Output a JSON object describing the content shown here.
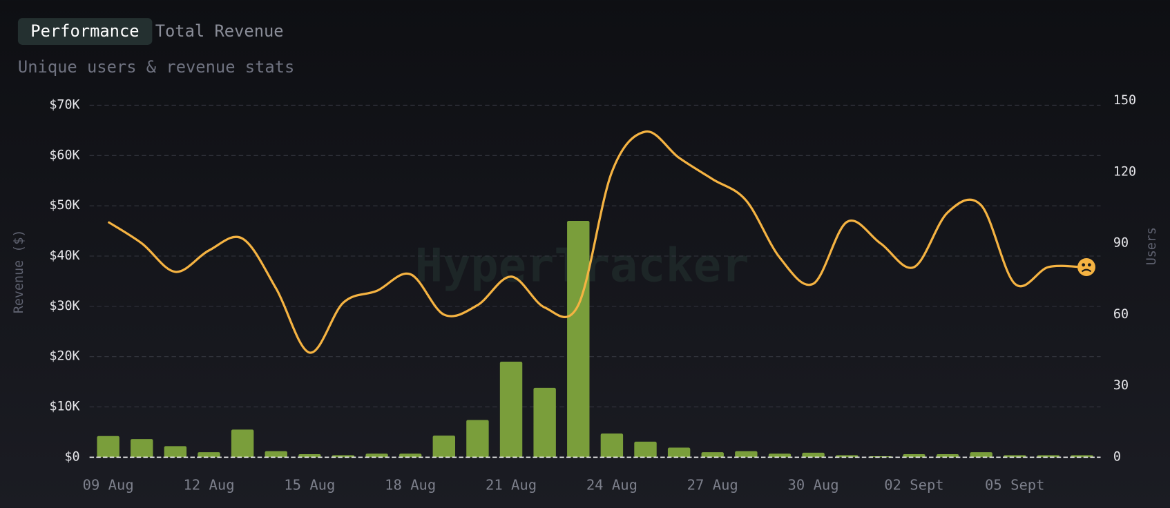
{
  "tabs": [
    "Performance",
    "Total Revenue"
  ],
  "active_tab": 0,
  "watermark": "HyperTracker",
  "chart_data": {
    "type": "combo",
    "subtitle": "Unique users & revenue stats",
    "y_label": "Revenue ($)",
    "y2_label": "Users",
    "categories": [
      "09 Aug",
      null,
      null,
      "12 Aug",
      null,
      null,
      "15 Aug",
      null,
      null,
      "18 Aug",
      null,
      null,
      "21 Aug",
      null,
      null,
      "24 Aug",
      null,
      null,
      "27 Aug",
      null,
      null,
      "30 Aug",
      null,
      null,
      "02 Sept",
      null,
      null,
      "05 Sept",
      null,
      null
    ],
    "series": [
      {
        "type": "bar",
        "color": "#7a9e3b",
        "values": [
          4200,
          3600,
          2200,
          1000,
          5500,
          1200,
          600,
          400,
          700,
          700,
          4300,
          7400,
          19000,
          13800,
          47000,
          4700,
          3100,
          1900,
          1000,
          1200,
          700,
          900,
          400,
          200,
          600,
          600,
          1000,
          400,
          400,
          400
        ]
      },
      {
        "type": "line",
        "color": "#f5b342",
        "axis": "y2",
        "values": [
          99,
          90,
          78,
          87,
          92,
          71,
          44,
          65,
          70,
          77,
          60,
          64,
          76,
          63,
          64,
          120,
          137,
          126,
          117,
          108,
          84,
          73,
          99,
          90,
          80,
          103,
          106,
          73,
          80,
          80
        ]
      }
    ],
    "ylim": [
      0,
      70000
    ],
    "yticks": [
      {
        "value": 0,
        "label": "$0"
      },
      {
        "value": 10000,
        "label": "$10K"
      },
      {
        "value": 20000,
        "label": "$20K"
      },
      {
        "value": 30000,
        "label": "$30K"
      },
      {
        "value": 40000,
        "label": "$40K"
      },
      {
        "value": 50000,
        "label": "$50K"
      },
      {
        "value": 60000,
        "label": "$60K"
      },
      {
        "value": 70000,
        "label": "$70K"
      }
    ],
    "y2lim": [
      0,
      150
    ],
    "y2ticks": [
      0,
      30,
      60,
      90,
      120,
      150
    ],
    "grid": true
  }
}
